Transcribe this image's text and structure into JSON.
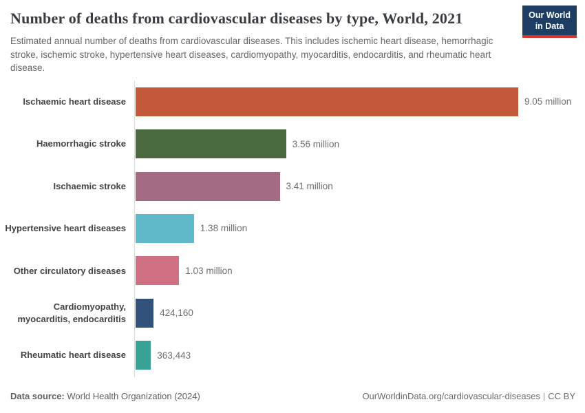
{
  "header": {
    "title": "Number of deaths from cardiovascular diseases by type, World, 2021",
    "subtitle": "Estimated annual number of deaths from cardiovascular diseases. This includes ischemic heart disease, hemorrhagic stroke, ischemic stroke, hypertensive heart diseases, cardiomyopathy, myocarditis, endocarditis, and rheumatic heart disease.",
    "logo": {
      "line1": "Our World",
      "line2": "in Data",
      "bg_color": "#1d3d63",
      "accent_color": "#d7352b"
    }
  },
  "chart_data": {
    "type": "bar",
    "orientation": "horizontal",
    "title": "Number of deaths from cardiovascular diseases by type, World, 2021",
    "xlabel": "",
    "ylabel": "",
    "xlim": [
      0,
      9050000
    ],
    "grid": false,
    "legend": "none",
    "categories": [
      "Ischaemic heart disease",
      "Haemorrhagic stroke",
      "Ischaemic stroke",
      "Hypertensive heart diseases",
      "Other circulatory diseases",
      "Cardiomyopathy, myocarditis, endocarditis",
      "Rheumatic heart disease"
    ],
    "values": [
      9050000,
      3560000,
      3410000,
      1380000,
      1030000,
      424160,
      363443
    ],
    "value_labels": [
      "9.05 million",
      "3.56 million",
      "3.41 million",
      "1.38 million",
      "1.03 million",
      "424,160",
      "363,443"
    ],
    "bar_colors": [
      "#c3593b",
      "#4a6b40",
      "#a46b85",
      "#5fb9c9",
      "#d07183",
      "#33527b",
      "#38a296"
    ]
  },
  "footer": {
    "source_label": "Data source:",
    "source_value": "World Health Organization (2024)",
    "link": "OurWorldinData.org/cardiovascular-diseases",
    "separator": "|",
    "license": "CC BY"
  }
}
